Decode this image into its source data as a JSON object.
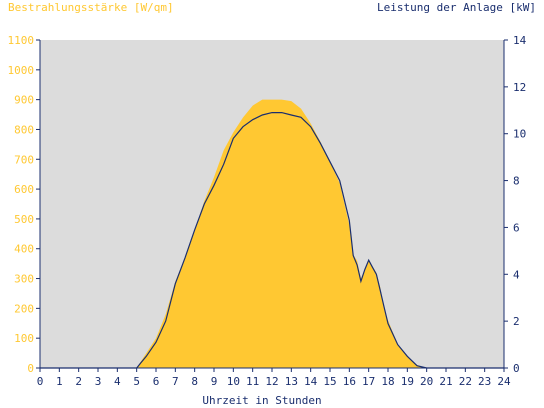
{
  "chart_data": {
    "type": "area",
    "title_left": "Bestrahlungsstärke [W/qm]",
    "title_right": "Leistung der Anlage [kW]",
    "xlabel": "Uhrzeit in Stunden",
    "x_ticks": [
      "0",
      "1",
      "2",
      "3",
      "4",
      "5",
      "6",
      "7",
      "8",
      "9",
      "10",
      "11",
      "12",
      "13",
      "14",
      "15",
      "16",
      "17",
      "18",
      "19",
      "20",
      "21",
      "22",
      "23",
      "24"
    ],
    "xlim": [
      0,
      24
    ],
    "y_left": {
      "ylim": [
        0,
        1100
      ],
      "ticks": [
        "0",
        "100",
        "200",
        "300",
        "400",
        "500",
        "600",
        "700",
        "800",
        "900",
        "1000",
        "1100"
      ],
      "color": "#ffc832"
    },
    "y_right": {
      "ylim": [
        0,
        14
      ],
      "ticks": [
        "0",
        "2",
        "4",
        "6",
        "8",
        "10",
        "12",
        "14"
      ],
      "color": "#1a2e6e"
    },
    "background_color": "#dcdcdc",
    "grid": false,
    "series": [
      {
        "name": "Bestrahlungsstärke [W/qm]",
        "axis": "left",
        "color": "#ffc832",
        "x": [
          0,
          5.0,
          5.2,
          5.5,
          6.0,
          6.5,
          7.0,
          7.5,
          8.0,
          8.5,
          9.0,
          9.5,
          10.0,
          10.5,
          11.0,
          11.5,
          12.0,
          12.5,
          13.0,
          13.5,
          14.0,
          14.5,
          15.0,
          15.5,
          16.0,
          16.2,
          16.4,
          16.6,
          16.8,
          17.0,
          17.2,
          17.4,
          17.6,
          17.8,
          18.0,
          18.5,
          19.0,
          19.5,
          20.0,
          24
        ],
        "y": [
          0,
          0,
          20,
          50,
          100,
          180,
          290,
          370,
          460,
          560,
          640,
          730,
          790,
          840,
          880,
          900,
          900,
          900,
          895,
          870,
          820,
          760,
          690,
          620,
          480,
          380,
          360,
          300,
          330,
          360,
          340,
          320,
          270,
          200,
          160,
          80,
          40,
          10,
          0,
          0
        ]
      },
      {
        "name": "Leistung der Anlage [kW]",
        "axis": "right",
        "color": "#1a2e6e",
        "x": [
          0,
          5.0,
          5.2,
          5.5,
          6.0,
          6.5,
          7.0,
          7.5,
          8.0,
          8.5,
          9.0,
          9.5,
          10.0,
          10.5,
          11.0,
          11.5,
          12.0,
          12.5,
          13.0,
          13.5,
          14.0,
          14.5,
          15.0,
          15.5,
          16.0,
          16.2,
          16.4,
          16.6,
          16.8,
          17.0,
          17.2,
          17.4,
          17.6,
          17.8,
          18.0,
          18.5,
          19.0,
          19.5,
          20.0,
          24
        ],
        "y": [
          0,
          0,
          0.2,
          0.5,
          1.1,
          2.0,
          3.6,
          4.7,
          5.9,
          7.0,
          7.8,
          8.7,
          9.8,
          10.3,
          10.6,
          10.8,
          10.9,
          10.9,
          10.8,
          10.7,
          10.3,
          9.6,
          8.8,
          8.0,
          6.3,
          4.8,
          4.4,
          3.7,
          4.2,
          4.6,
          4.3,
          4.0,
          3.3,
          2.6,
          1.9,
          1.0,
          0.5,
          0.1,
          0,
          0
        ]
      }
    ]
  }
}
